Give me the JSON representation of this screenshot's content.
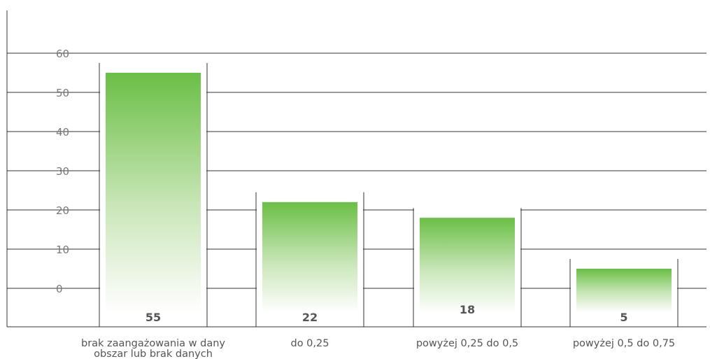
{
  "chart_data": {
    "type": "bar",
    "categories": [
      [
        "brak zaangażowania w dany",
        "obszar lub brak danych"
      ],
      [
        "do 0,25"
      ],
      [
        "powyżej 0,25 do 0,5"
      ],
      [
        "powyżej 0,5 do 0,75"
      ]
    ],
    "values": [
      55,
      22,
      18,
      5
    ],
    "value_labels": [
      "55",
      "22",
      "18",
      "5"
    ],
    "yticks": [
      "0",
      "10",
      "20",
      "30",
      "40",
      "50",
      "60"
    ],
    "ylim": [
      0,
      60
    ],
    "grid": true,
    "legend": "none",
    "colors": {
      "bar_top": "#6abf45",
      "bar_bottom": "#ffffff",
      "axis": "#333333",
      "tick_text": "#7a7a7a",
      "label_text": "#555555"
    }
  }
}
